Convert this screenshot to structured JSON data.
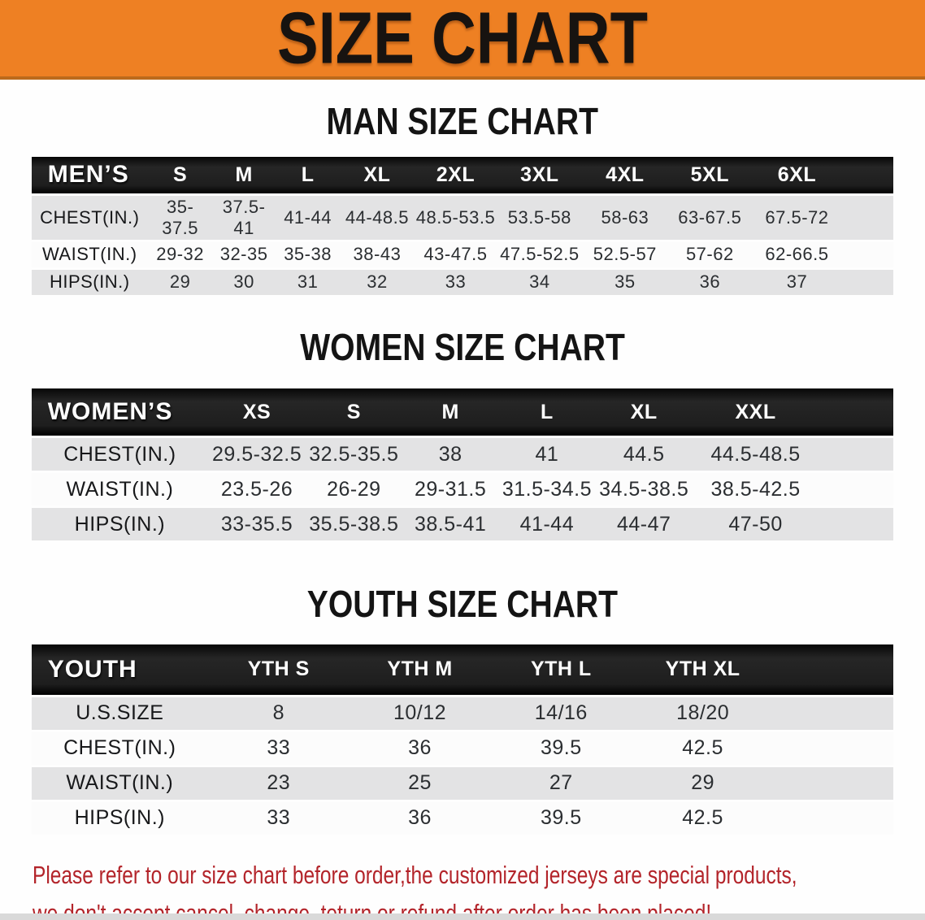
{
  "banner": {
    "title": "SIZE CHART"
  },
  "sections": [
    {
      "title": "MAN SIZE CHART",
      "corner": "MEN’S",
      "columns": [
        "S",
        "M",
        "L",
        "XL",
        "2XL",
        "3XL",
        "4XL",
        "5XL",
        "6XL"
      ],
      "rows": [
        {
          "label": "CHEST(IN.)",
          "values": [
            "35-37.5",
            "37.5-41",
            "41-44",
            "44-48.5",
            "48.5-53.5",
            "53.5-58",
            "58-63",
            "63-67.5",
            "67.5-72"
          ]
        },
        {
          "label": "WAIST(IN.)",
          "values": [
            "29-32",
            "32-35",
            "35-38",
            "38-43",
            "43-47.5",
            "47.5-52.5",
            "52.5-57",
            "57-62",
            "62-66.5"
          ]
        },
        {
          "label": "HIPS(IN.)",
          "values": [
            "29",
            "30",
            "31",
            "32",
            "33",
            "34",
            "35",
            "36",
            "37"
          ]
        }
      ]
    },
    {
      "title": "WOMEN SIZE CHART",
      "corner": "WOMEN’S",
      "columns": [
        "XS",
        "S",
        "M",
        "L",
        "XL",
        "XXL"
      ],
      "rows": [
        {
          "label": "CHEST(IN.)",
          "values": [
            "29.5-32.5",
            "32.5-35.5",
            "38",
            "41",
            "44.5",
            "44.5-48.5"
          ]
        },
        {
          "label": "WAIST(IN.)",
          "values": [
            "23.5-26",
            "26-29",
            "29-31.5",
            "31.5-34.5",
            "34.5-38.5",
            "38.5-42.5"
          ]
        },
        {
          "label": "HIPS(IN.)",
          "values": [
            "33-35.5",
            "35.5-38.5",
            "38.5-41",
            "41-44",
            "44-47",
            "47-50"
          ]
        }
      ]
    },
    {
      "title": "YOUTH SIZE CHART",
      "corner": "YOUTH",
      "columns": [
        "YTH S",
        "YTH M",
        "YTH L",
        "YTH XL"
      ],
      "rows": [
        {
          "label": "U.S.SIZE",
          "values": [
            "8",
            "10/12",
            "14/16",
            "18/20"
          ]
        },
        {
          "label": "CHEST(IN.)",
          "values": [
            "33",
            "36",
            "39.5",
            "42.5"
          ]
        },
        {
          "label": "WAIST(IN.)",
          "values": [
            "23",
            "25",
            "27",
            "29"
          ]
        },
        {
          "label": "HIPS(IN.)",
          "values": [
            "33",
            "36",
            "39.5",
            "42.5"
          ]
        }
      ]
    }
  ],
  "disclaimer": {
    "lines": [
      "Please refer to our size chart before order,the customized jerseys are special products,",
      "we don't accept cancel, change, teturn or refund after order has been placed!"
    ]
  },
  "colors": {
    "banner_bg": "#ee8023",
    "banner_edge": "#bc6a1b",
    "header_band": "#1c1c1c",
    "header_text": "#ffffff",
    "row_shaded": "#e3e3e4",
    "row_plain": "#fcfcfc",
    "value_text": "#2b2e31",
    "title_text": "#141414",
    "disclaimer_red": "#b3242a"
  }
}
